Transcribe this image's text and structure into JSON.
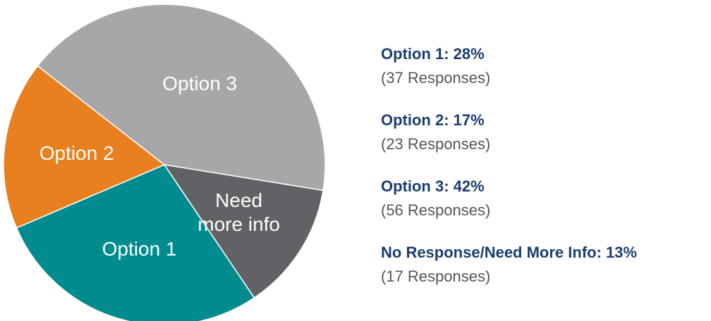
{
  "chart_data": {
    "type": "pie",
    "categories": [
      "Option 1",
      "Option 2",
      "Option 3",
      "Need more info"
    ],
    "values": [
      28,
      17,
      42,
      13
    ],
    "value_labels": [
      "Option 1: 28%",
      "Option 2: 17%",
      "Option 3: 42%",
      "No Response/Need More Info: 13%"
    ],
    "responses": [
      "(37 Responses)",
      "(23 Responses)",
      "(56 Responses)",
      "(17 Responses)"
    ],
    "colors": [
      "#008b8f",
      "#e8801f",
      "#a7a7a9",
      "#616265"
    ]
  }
}
